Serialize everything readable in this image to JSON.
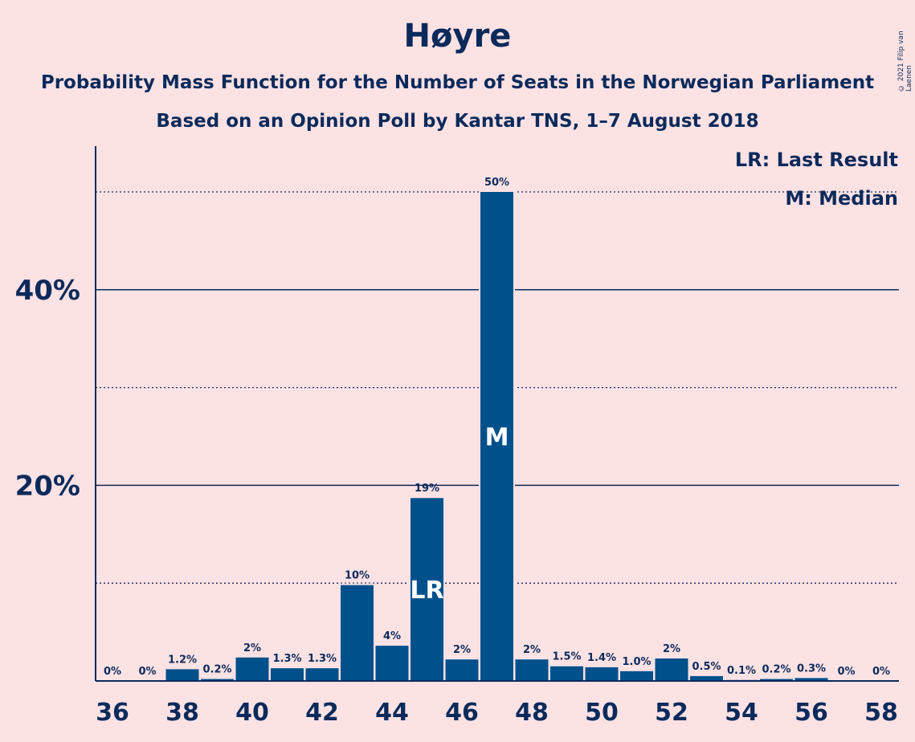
{
  "title": "Høyre",
  "subtitle1": "Probability Mass Function for the Number of Seats in the Norwegian Parliament",
  "subtitle2": "Based on an Opinion Poll by Kantar TNS, 1–7 August 2018",
  "copyright": "© 2021 Filip van Laenen",
  "legend": {
    "last_result": "LR: Last Result",
    "median": "M: Median"
  },
  "colors": {
    "background": "#fde2e4",
    "bar": "#00508c",
    "text": "#0b2a5b"
  },
  "chart_data": {
    "type": "bar",
    "title": "Høyre",
    "xlabel": "",
    "ylabel": "",
    "ylim": [
      0,
      55
    ],
    "grid": true,
    "legend_position": "top-right",
    "x_tick_labels": [
      "36",
      "38",
      "40",
      "42",
      "44",
      "46",
      "48",
      "50",
      "52",
      "54",
      "56",
      "58"
    ],
    "y_tick_labels": [
      {
        "value": 20,
        "label": "20%"
      },
      {
        "value": 40,
        "label": "40%"
      }
    ],
    "dotted_gridlines": [
      10,
      30,
      50
    ],
    "solid_gridlines": [
      20,
      40
    ],
    "categories": [
      36,
      37,
      38,
      39,
      40,
      41,
      42,
      43,
      44,
      45,
      46,
      47,
      48,
      49,
      50,
      51,
      52,
      53,
      54,
      55,
      56,
      57,
      58
    ],
    "values": [
      0,
      0,
      1.2,
      0.2,
      2.4,
      1.3,
      1.3,
      9.8,
      3.6,
      18.7,
      2.2,
      50.0,
      2.2,
      1.5,
      1.4,
      1.0,
      2.3,
      0.5,
      0.1,
      0.2,
      0.3,
      0,
      0
    ],
    "labels": [
      "0%",
      "0%",
      "1.2%",
      "0.2%",
      "2%",
      "1.3%",
      "1.3%",
      "10%",
      "4%",
      "19%",
      "2%",
      "50%",
      "2%",
      "1.5%",
      "1.4%",
      "1.0%",
      "2%",
      "0.5%",
      "0.1%",
      "0.2%",
      "0.3%",
      "0%",
      "0%"
    ],
    "annotations": [
      {
        "seat": 45,
        "text": "LR"
      },
      {
        "seat": 47,
        "text": "M"
      }
    ]
  }
}
